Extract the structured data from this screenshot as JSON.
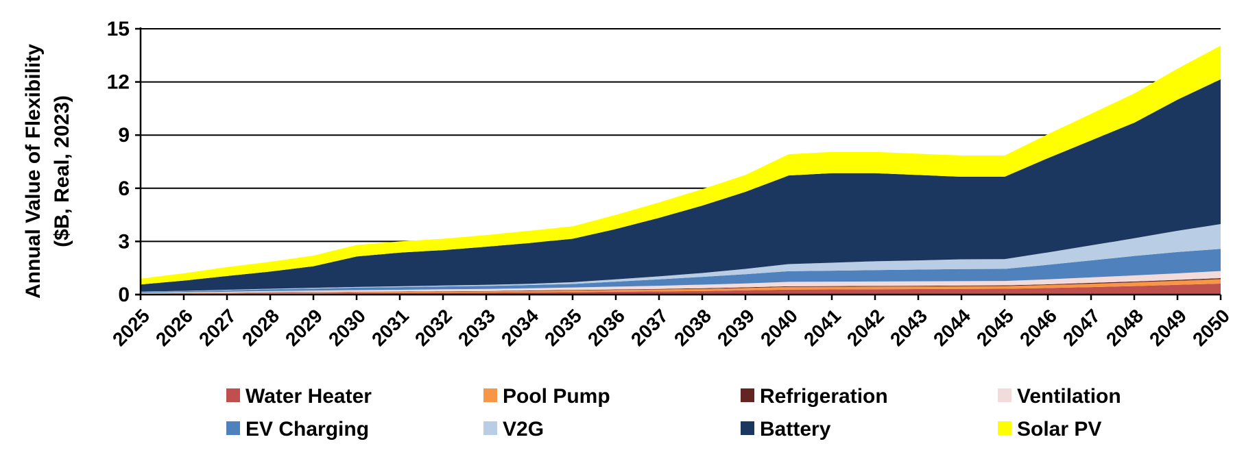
{
  "chart_data": {
    "type": "area",
    "stacked": true,
    "x": [
      "2025",
      "2026",
      "2027",
      "2028",
      "2029",
      "2030",
      "2031",
      "2032",
      "2033",
      "2034",
      "2035",
      "2036",
      "2037",
      "2038",
      "2039",
      "2040",
      "2041",
      "2042",
      "2043",
      "2044",
      "2045",
      "2046",
      "2047",
      "2048",
      "2049",
      "2050"
    ],
    "ylabel": [
      "Annual Value of Flexibility",
      "($B, Real, 2023)"
    ],
    "ylim": [
      0,
      15
    ],
    "yticks": [
      "0",
      "3",
      "6",
      "9",
      "12",
      "15"
    ],
    "grid": "horizontal",
    "legend_position": "bottom",
    "series": [
      {
        "name": "Water Heater",
        "color": "#C0504D",
        "values": [
          0.03,
          0.04,
          0.05,
          0.06,
          0.07,
          0.08,
          0.09,
          0.1,
          0.11,
          0.12,
          0.14,
          0.16,
          0.18,
          0.2,
          0.24,
          0.28,
          0.29,
          0.3,
          0.31,
          0.32,
          0.33,
          0.37,
          0.42,
          0.48,
          0.55,
          0.62
        ]
      },
      {
        "name": "Pool Pump",
        "color": "#F79646",
        "values": [
          0.02,
          0.03,
          0.04,
          0.05,
          0.05,
          0.06,
          0.06,
          0.07,
          0.07,
          0.08,
          0.09,
          0.1,
          0.11,
          0.12,
          0.13,
          0.15,
          0.15,
          0.15,
          0.15,
          0.15,
          0.15,
          0.17,
          0.19,
          0.21,
          0.23,
          0.25
        ]
      },
      {
        "name": "Refrigeration",
        "color": "#632523",
        "values": [
          0.01,
          0.01,
          0.01,
          0.02,
          0.02,
          0.02,
          0.02,
          0.02,
          0.02,
          0.03,
          0.03,
          0.03,
          0.03,
          0.04,
          0.04,
          0.04,
          0.04,
          0.04,
          0.04,
          0.04,
          0.04,
          0.04,
          0.05,
          0.05,
          0.05,
          0.06
        ]
      },
      {
        "name": "Ventilation",
        "color": "#F2DCDB",
        "values": [
          0.04,
          0.05,
          0.06,
          0.07,
          0.08,
          0.09,
          0.1,
          0.11,
          0.12,
          0.13,
          0.14,
          0.16,
          0.18,
          0.2,
          0.22,
          0.25,
          0.25,
          0.25,
          0.25,
          0.25,
          0.25,
          0.28,
          0.31,
          0.34,
          0.37,
          0.4
        ]
      },
      {
        "name": "EV Charging",
        "color": "#4F81BD",
        "values": [
          0.05,
          0.06,
          0.08,
          0.1,
          0.12,
          0.14,
          0.15,
          0.16,
          0.17,
          0.18,
          0.2,
          0.28,
          0.36,
          0.44,
          0.52,
          0.6,
          0.62,
          0.64,
          0.66,
          0.68,
          0.68,
          0.82,
          0.96,
          1.1,
          1.2,
          1.25
        ]
      },
      {
        "name": "V2G",
        "color": "#B9CDE5",
        "values": [
          0.02,
          0.02,
          0.03,
          0.03,
          0.04,
          0.04,
          0.05,
          0.05,
          0.06,
          0.07,
          0.1,
          0.13,
          0.17,
          0.22,
          0.3,
          0.4,
          0.45,
          0.5,
          0.52,
          0.55,
          0.55,
          0.7,
          0.85,
          1.0,
          1.2,
          1.4
        ]
      },
      {
        "name": "Battery",
        "color": "#1B375F",
        "values": [
          0.4,
          0.58,
          0.78,
          0.97,
          1.22,
          1.72,
          1.9,
          2.0,
          2.15,
          2.3,
          2.45,
          2.84,
          3.3,
          3.8,
          4.35,
          5.0,
          5.05,
          4.97,
          4.82,
          4.66,
          4.65,
          5.32,
          5.92,
          6.52,
          7.4,
          8.17
        ]
      },
      {
        "name": "Solar PV",
        "color": "#FFFF00",
        "values": [
          0.33,
          0.41,
          0.5,
          0.55,
          0.6,
          0.65,
          0.63,
          0.64,
          0.66,
          0.69,
          0.7,
          0.8,
          0.87,
          0.93,
          0.95,
          1.2,
          1.2,
          1.2,
          1.2,
          1.2,
          1.2,
          1.35,
          1.5,
          1.65,
          1.75,
          1.9
        ]
      }
    ]
  }
}
